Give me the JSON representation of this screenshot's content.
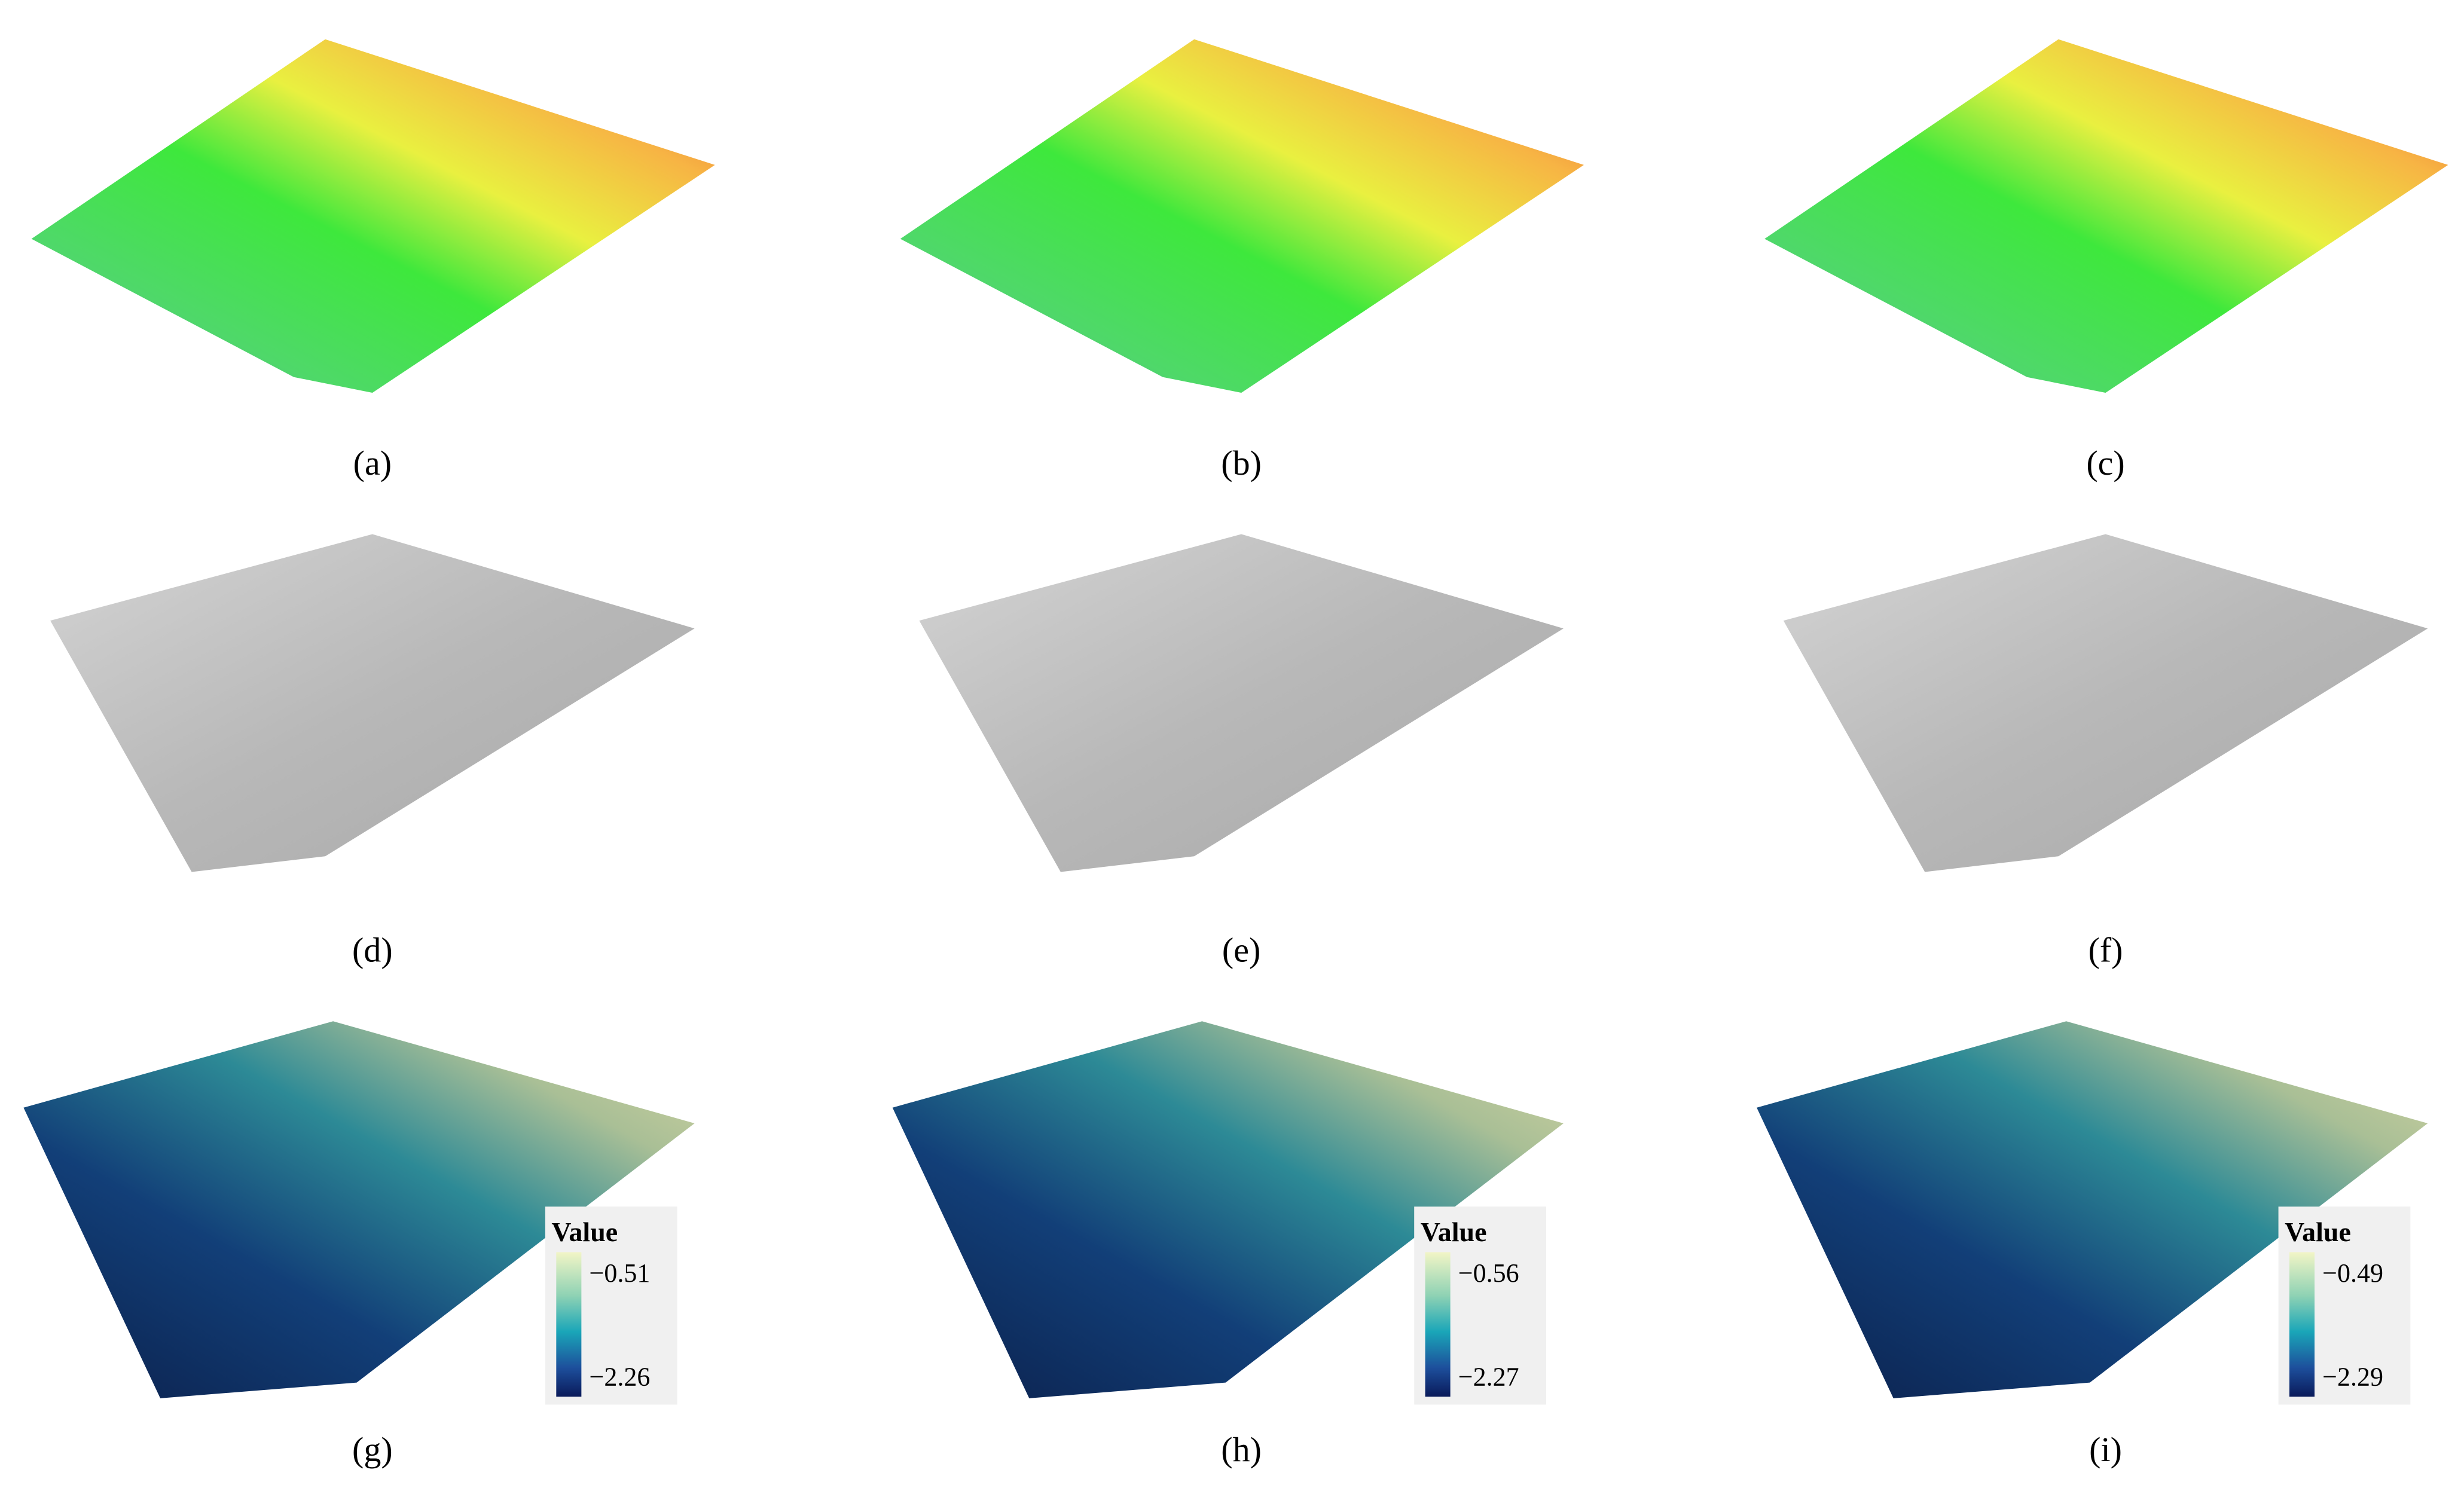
{
  "panels": [
    {
      "label": "(a)"
    },
    {
      "label": "(b)"
    },
    {
      "label": "(c)"
    },
    {
      "label": "(d)"
    },
    {
      "label": "(e)"
    },
    {
      "label": "(f)"
    },
    {
      "label": "(g)",
      "legend": {
        "title": "Value",
        "max": "−0.51",
        "min": "−2.26"
      }
    },
    {
      "label": "(h)",
      "legend": {
        "title": "Value",
        "max": "−0.56",
        "min": "−2.27"
      }
    },
    {
      "label": "(i)",
      "legend": {
        "title": "Value",
        "max": "−0.49",
        "min": "−2.29"
      }
    }
  ]
}
